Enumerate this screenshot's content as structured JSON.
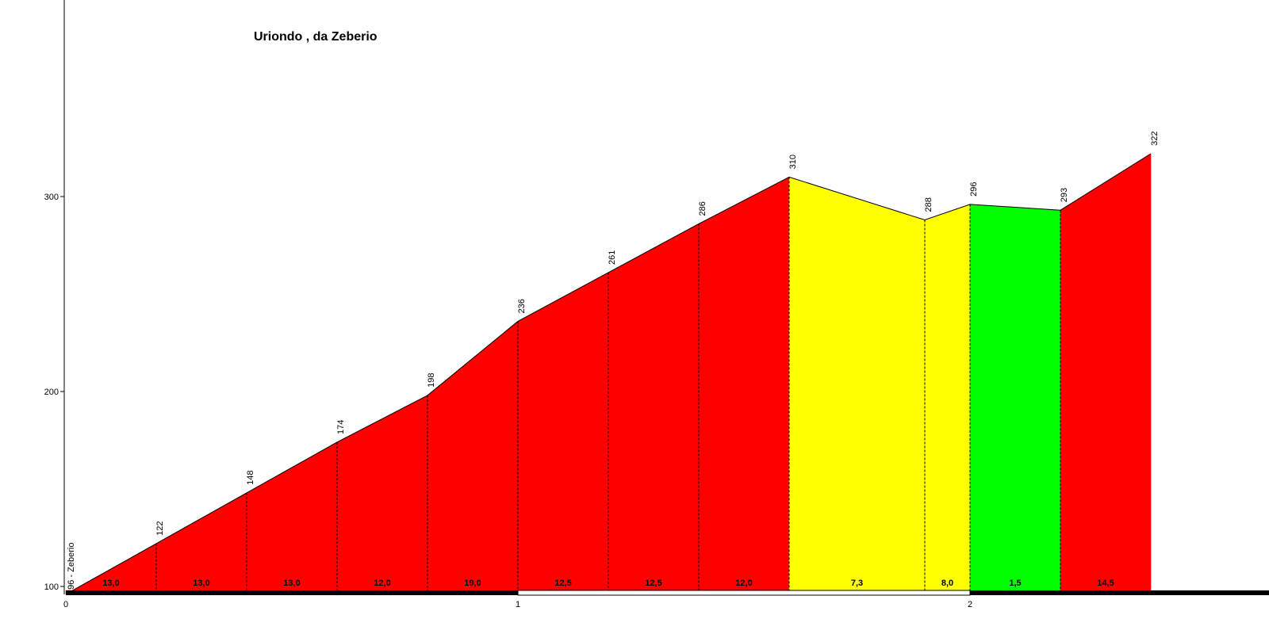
{
  "chart_data": {
    "type": "area",
    "title": "Uriondo , da Zeberio",
    "xlabel": "",
    "ylabel": "",
    "x_unit": "km",
    "y_unit": "m",
    "xlim": [
      0,
      2.63
    ],
    "ylim": [
      90,
      390
    ],
    "x_ticks": [
      "0",
      "1",
      "2"
    ],
    "y_ticks": [
      "100",
      "200",
      "300"
    ],
    "points": [
      {
        "x": 0.0,
        "y": 96,
        "label": "96 - Zeberio"
      },
      {
        "x": 0.2,
        "y": 122,
        "label": "122"
      },
      {
        "x": 0.4,
        "y": 148,
        "label": "148"
      },
      {
        "x": 0.6,
        "y": 174,
        "label": "174"
      },
      {
        "x": 0.8,
        "y": 198,
        "label": "198"
      },
      {
        "x": 1.0,
        "y": 236,
        "label": "236"
      },
      {
        "x": 1.2,
        "y": 261,
        "label": "261"
      },
      {
        "x": 1.4,
        "y": 286,
        "label": "286"
      },
      {
        "x": 1.6,
        "y": 310,
        "label": "310"
      },
      {
        "x": 1.9,
        "y": 288,
        "label": "288"
      },
      {
        "x": 2.0,
        "y": 296,
        "label": "296"
      },
      {
        "x": 2.2,
        "y": 293,
        "label": "293"
      },
      {
        "x": 2.4,
        "y": 322,
        "label": "322"
      }
    ],
    "segments": [
      {
        "gradient": "13,0",
        "color": "#ff0000"
      },
      {
        "gradient": "13,0",
        "color": "#ff0000"
      },
      {
        "gradient": "13,0",
        "color": "#ff0000"
      },
      {
        "gradient": "12,0",
        "color": "#ff0000"
      },
      {
        "gradient": "19,0",
        "color": "#ff0000"
      },
      {
        "gradient": "12,5",
        "color": "#ff0000"
      },
      {
        "gradient": "12,5",
        "color": "#ff0000"
      },
      {
        "gradient": "12,0",
        "color": "#ff0000"
      },
      {
        "gradient": "7,3",
        "color": "#ffff00"
      },
      {
        "gradient": "8,0",
        "color": "#ffff00"
      },
      {
        "gradient": "1,5",
        "color": "#00ff00"
      },
      {
        "gradient": "14,5",
        "color": "#ff0000"
      }
    ]
  }
}
